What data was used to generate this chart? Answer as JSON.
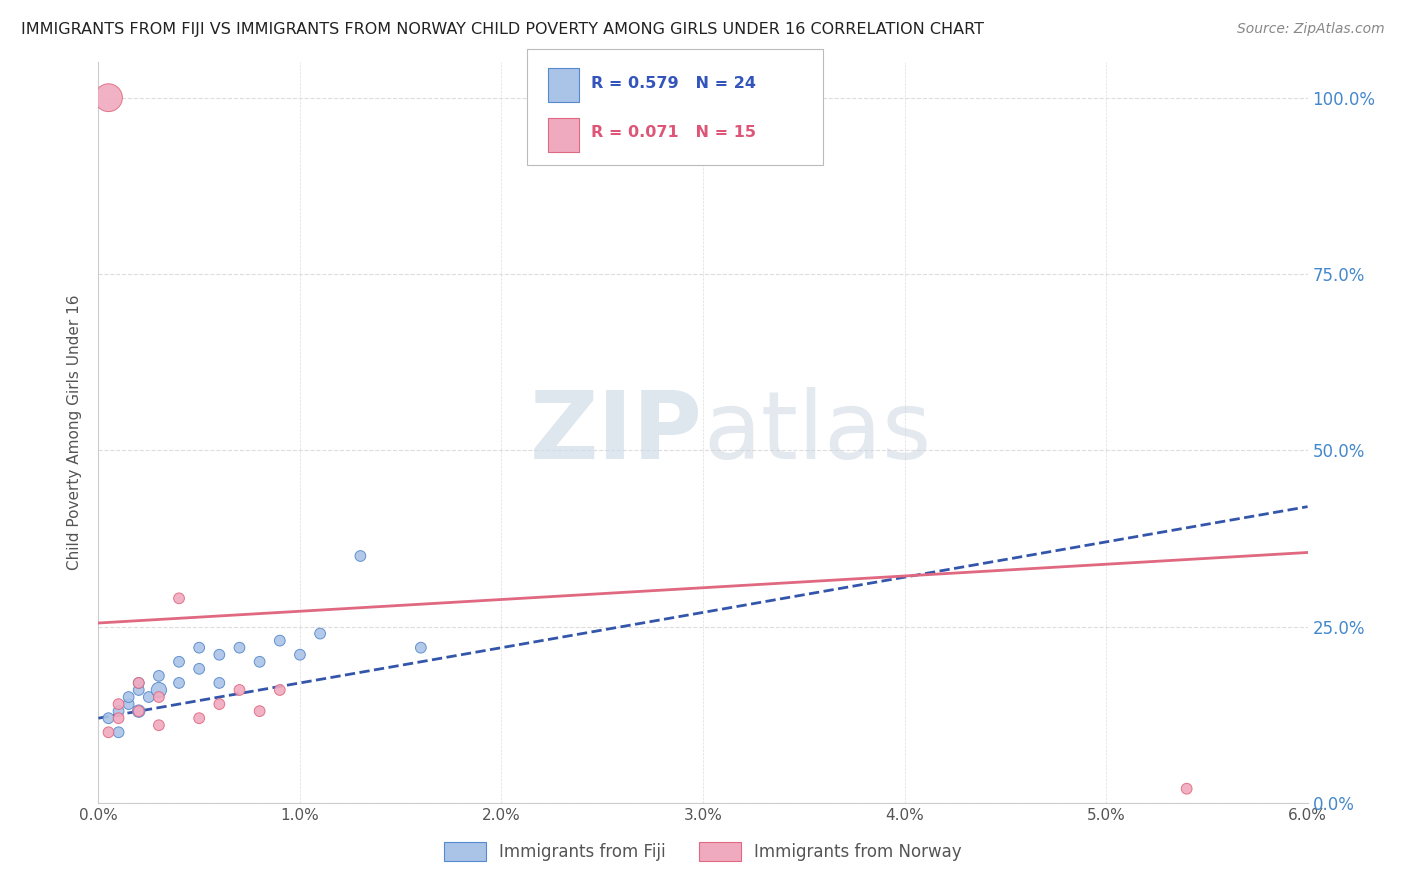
{
  "title": "IMMIGRANTS FROM FIJI VS IMMIGRANTS FROM NORWAY CHILD POVERTY AMONG GIRLS UNDER 16 CORRELATION CHART",
  "source": "Source: ZipAtlas.com",
  "ylabel": "Child Poverty Among Girls Under 16",
  "xlim": [
    0.0,
    0.06
  ],
  "ylim": [
    0.0,
    1.05
  ],
  "yticks": [
    0.0,
    0.25,
    0.5,
    0.75,
    1.0
  ],
  "ytick_labels": [
    "0.0%",
    "25.0%",
    "50.0%",
    "75.0%",
    "100.0%"
  ],
  "xticks": [
    0.0,
    0.01,
    0.02,
    0.03,
    0.04,
    0.05,
    0.06
  ],
  "xtick_labels": [
    "0.0%",
    "1.0%",
    "2.0%",
    "3.0%",
    "4.0%",
    "5.0%",
    "6.0%"
  ],
  "fiji_color": "#aac4e8",
  "norway_color": "#f0aac0",
  "fiji_edge_color": "#5588cc",
  "norway_edge_color": "#e06880",
  "fiji_line_color": "#3355aa",
  "norway_line_color": "#e06880",
  "fiji_R": 0.579,
  "fiji_N": 24,
  "norway_R": 0.071,
  "norway_N": 15,
  "fiji_x": [
    0.0005,
    0.001,
    0.001,
    0.0015,
    0.0015,
    0.002,
    0.002,
    0.002,
    0.0025,
    0.003,
    0.003,
    0.004,
    0.004,
    0.005,
    0.005,
    0.006,
    0.006,
    0.007,
    0.008,
    0.009,
    0.01,
    0.011,
    0.013,
    0.016
  ],
  "fiji_y": [
    0.12,
    0.1,
    0.13,
    0.14,
    0.15,
    0.13,
    0.16,
    0.17,
    0.15,
    0.16,
    0.18,
    0.17,
    0.2,
    0.19,
    0.22,
    0.17,
    0.21,
    0.22,
    0.2,
    0.23,
    0.21,
    0.24,
    0.35,
    0.22
  ],
  "fiji_sizes": [
    60,
    60,
    60,
    60,
    60,
    80,
    60,
    60,
    60,
    120,
    60,
    60,
    60,
    60,
    60,
    60,
    60,
    60,
    60,
    60,
    60,
    60,
    60,
    60
  ],
  "norway_x": [
    0.0005,
    0.001,
    0.001,
    0.002,
    0.002,
    0.003,
    0.003,
    0.004,
    0.005,
    0.006,
    0.007,
    0.008,
    0.009,
    0.054,
    0.0005
  ],
  "norway_y": [
    0.1,
    0.12,
    0.14,
    0.13,
    0.17,
    0.11,
    0.15,
    0.29,
    0.12,
    0.14,
    0.16,
    0.13,
    0.16,
    0.02,
    1.0
  ],
  "norway_sizes": [
    60,
    60,
    60,
    60,
    60,
    60,
    60,
    60,
    60,
    60,
    60,
    60,
    60,
    60,
    400
  ],
  "fiji_trend_x0": 0.0,
  "fiji_trend_x1": 0.06,
  "fiji_trend_y0": 0.12,
  "fiji_trend_y1": 0.42,
  "norway_trend_x0": 0.0,
  "norway_trend_x1": 0.06,
  "norway_trend_y0": 0.255,
  "norway_trend_y1": 0.355
}
